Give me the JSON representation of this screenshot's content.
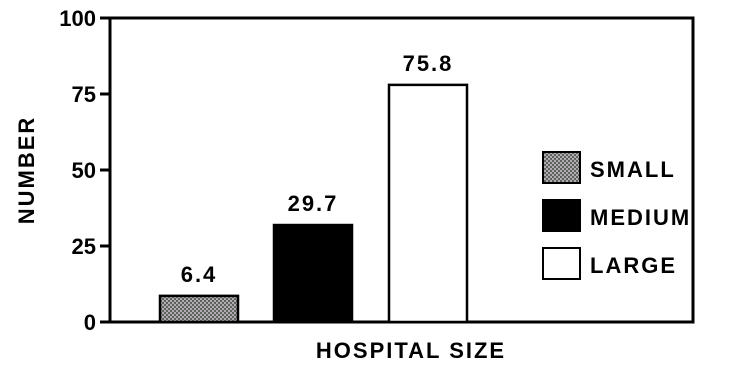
{
  "chart_data": {
    "type": "bar",
    "categories": [
      "SMALL",
      "MEDIUM",
      "LARGE"
    ],
    "values": [
      6.4,
      29.7,
      75.8
    ],
    "data_labels": [
      "6.4",
      "29.7",
      "75.8"
    ],
    "title": "",
    "xlabel": "HOSPITAL SIZE",
    "ylabel": "NUMBER",
    "ylim": [
      0,
      100
    ],
    "yticks": [
      "0",
      "25",
      "50",
      "75",
      "100"
    ],
    "grid": false,
    "legend_position": "right",
    "legend": [
      {
        "label": "SMALL",
        "fill": "checkered gray"
      },
      {
        "label": "MEDIUM",
        "fill": "#000000"
      },
      {
        "label": "LARGE",
        "fill": "#ffffff"
      }
    ]
  }
}
